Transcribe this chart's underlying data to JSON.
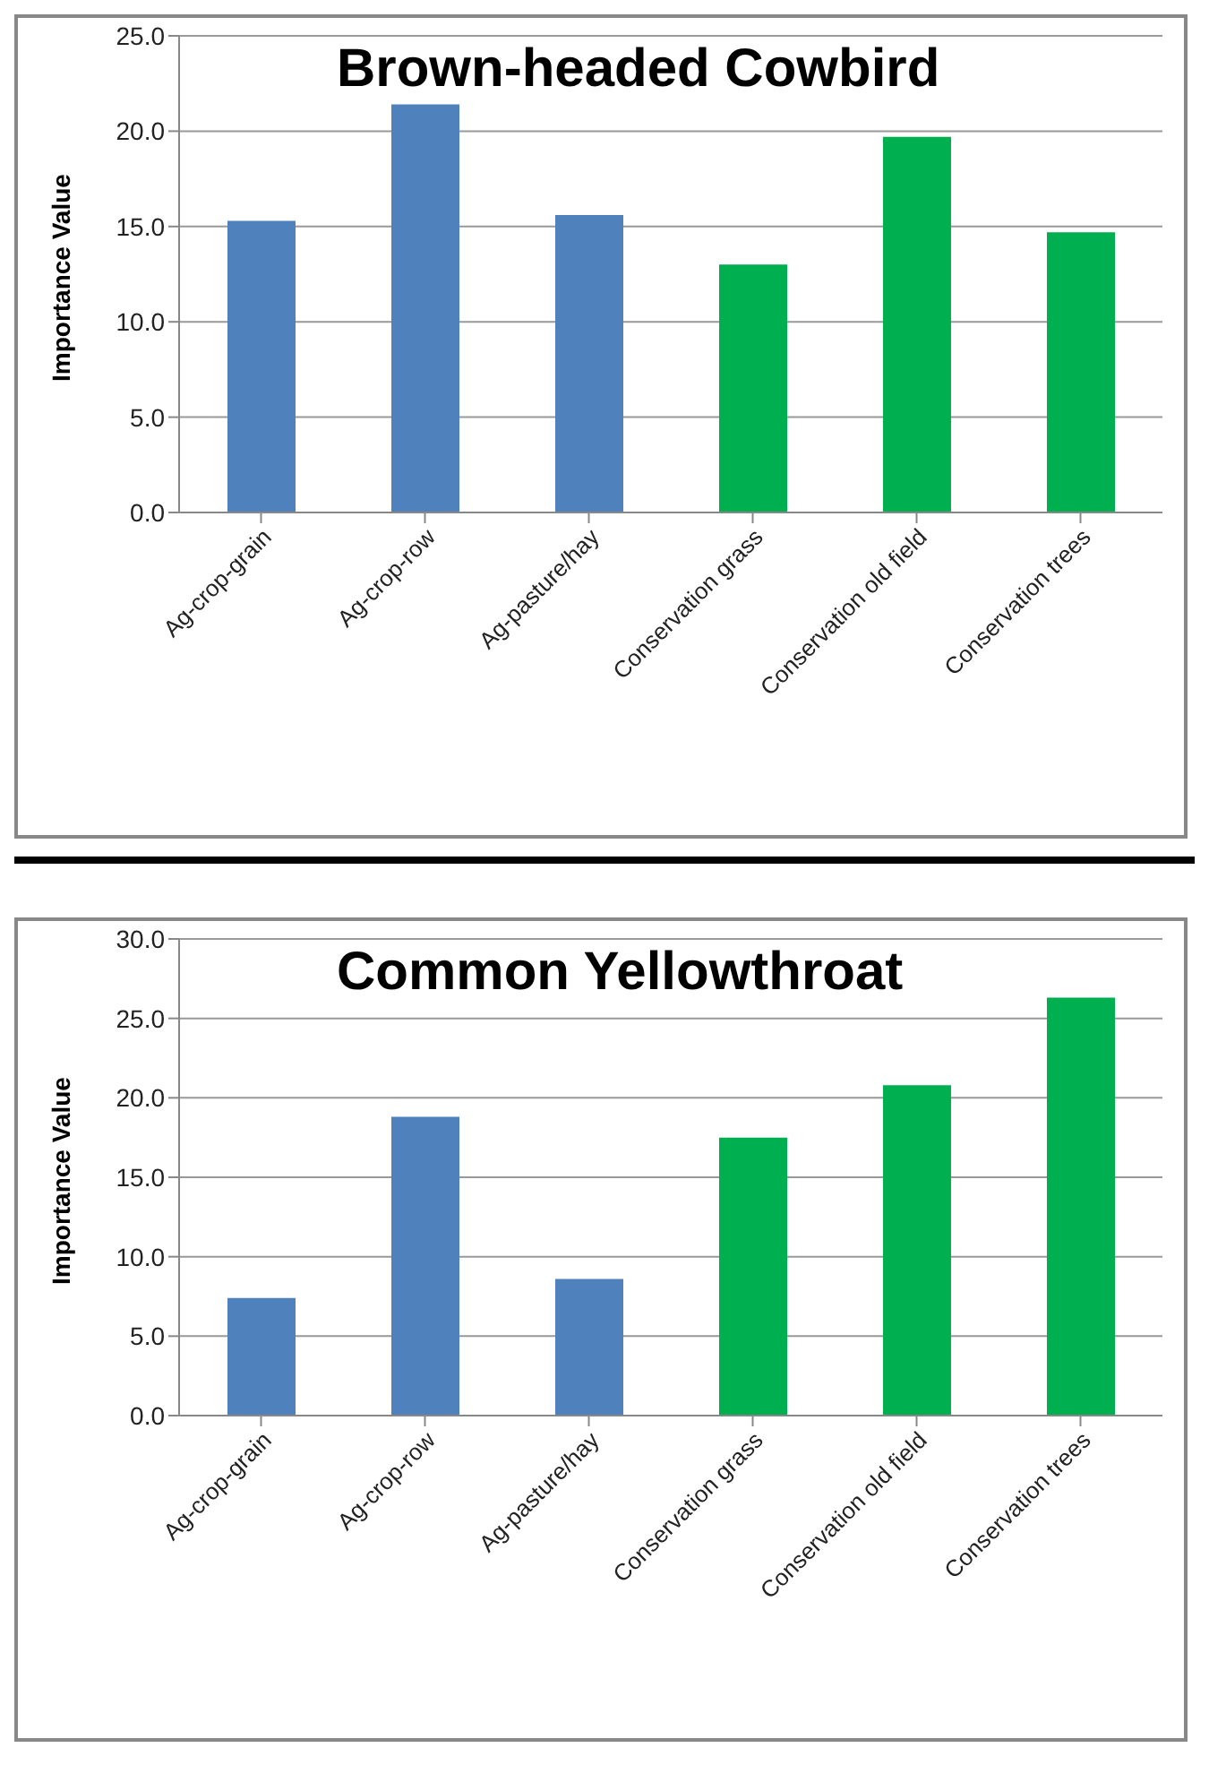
{
  "chart_data": [
    {
      "type": "bar",
      "title": "Brown-headed Cowbird",
      "ylabel": "Importance Value",
      "categories": [
        "Ag-crop-grain",
        "Ag-crop-row",
        "Ag-pasture/hay",
        "Conservation grass",
        "Conservation old field",
        "Conservation trees"
      ],
      "values": [
        15.3,
        21.4,
        15.6,
        13.0,
        19.7,
        14.7
      ],
      "colors": [
        "#4f81bd",
        "#4f81bd",
        "#4f81bd",
        "#00b050",
        "#00b050",
        "#00b050"
      ],
      "ylim": [
        0,
        25
      ],
      "yticks": [
        {
          "value": 0,
          "label": "0.0"
        },
        {
          "value": 5,
          "label": "5.0"
        },
        {
          "value": 10,
          "label": "10.0"
        },
        {
          "value": 15,
          "label": "15.0"
        },
        {
          "value": 20,
          "label": "20.0"
        },
        {
          "value": 25,
          "label": "25.0"
        }
      ],
      "grid": "y",
      "legend": false
    },
    {
      "type": "bar",
      "title": "Common Yellowthroat",
      "ylabel": "Importance Value",
      "categories": [
        "Ag-crop-grain",
        "Ag-crop-row",
        "Ag-pasture/hay",
        "Conservation grass",
        "Conservation old field",
        "Conservation trees"
      ],
      "values": [
        7.4,
        18.8,
        8.6,
        17.5,
        20.8,
        26.3
      ],
      "colors": [
        "#4f81bd",
        "#4f81bd",
        "#4f81bd",
        "#00b050",
        "#00b050",
        "#00b050"
      ],
      "ylim": [
        0,
        30
      ],
      "yticks": [
        {
          "value": 0,
          "label": "0.0"
        },
        {
          "value": 5,
          "label": "5.0"
        },
        {
          "value": 10,
          "label": "10.0"
        },
        {
          "value": 15,
          "label": "15.0"
        },
        {
          "value": 20,
          "label": "20.0"
        },
        {
          "value": 25,
          "label": "25.0"
        },
        {
          "value": 30,
          "label": "30.0"
        }
      ],
      "grid": "y",
      "legend": false
    }
  ]
}
